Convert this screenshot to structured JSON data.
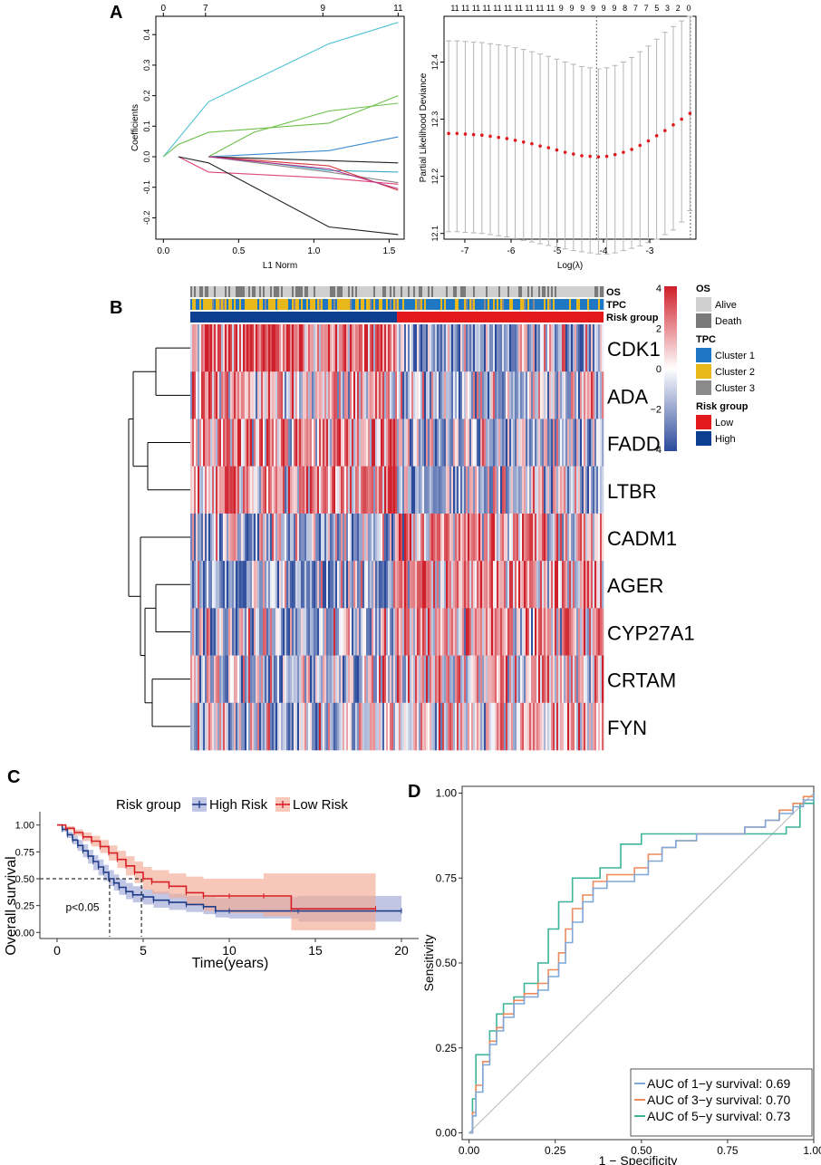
{
  "panels": {
    "A": "A",
    "B": "B",
    "C": "C",
    "D": "D"
  },
  "chart_data": [
    {
      "panel": "A-left",
      "type": "line",
      "title": "",
      "xlabel": "L1 Norm",
      "ylabel": "Coefficients",
      "xlim": [
        -0.05,
        1.6
      ],
      "ylim": [
        -0.27,
        0.46
      ],
      "x_ticks": [
        "0.0",
        "0.5",
        "1.0",
        "1.5"
      ],
      "x_tick_values": [
        0,
        0.5,
        1.0,
        1.5
      ],
      "y_ticks": [
        "-0.2",
        "-0.1",
        "0.0",
        "0.1",
        "0.2",
        "0.3",
        "0.4"
      ],
      "y_tick_values": [
        -0.2,
        -0.1,
        0.0,
        0.1,
        0.2,
        0.3,
        0.4
      ],
      "top_ticks": [
        "0",
        "7",
        "9",
        "11"
      ],
      "top_tick_values": [
        0,
        0.28,
        1.06,
        1.56
      ],
      "series": [
        {
          "name": "cyan",
          "color": "#4fc3d4",
          "x": [
            0,
            0.1,
            0.3,
            1.1,
            1.56
          ],
          "y": [
            0,
            0.06,
            0.18,
            0.37,
            0.44
          ]
        },
        {
          "name": "green1",
          "color": "#6cc04a",
          "x": [
            0,
            0.1,
            0.3,
            1.1,
            1.56
          ],
          "y": [
            0,
            0.04,
            0.08,
            0.11,
            0.2
          ]
        },
        {
          "name": "green2",
          "color": "#6cc04a",
          "x": [
            0.3,
            0.6,
            1.1,
            1.56
          ],
          "y": [
            0,
            0.08,
            0.15,
            0.175
          ]
        },
        {
          "name": "blue",
          "color": "#3c8ad1",
          "x": [
            0.3,
            1.1,
            1.56
          ],
          "y": [
            0,
            0.02,
            0.065
          ]
        },
        {
          "name": "black1",
          "color": "#222222",
          "x": [
            0.3,
            1.56
          ],
          "y": [
            0,
            -0.02
          ]
        },
        {
          "name": "teal",
          "color": "#3aa9c9",
          "x": [
            0.3,
            0.7,
            1.1,
            1.56
          ],
          "y": [
            0,
            -0.02,
            -0.045,
            -0.05
          ]
        },
        {
          "name": "gray",
          "color": "#8a8a8a",
          "x": [
            0.3,
            1.1,
            1.56
          ],
          "y": [
            0,
            -0.05,
            -0.085
          ]
        },
        {
          "name": "pink",
          "color": "#e0457a",
          "x": [
            0.1,
            0.3,
            1.1,
            1.56
          ],
          "y": [
            0,
            -0.05,
            -0.07,
            -0.09
          ]
        },
        {
          "name": "red",
          "color": "#d93a3a",
          "x": [
            0.3,
            1.1,
            1.56
          ],
          "y": [
            0,
            -0.03,
            -0.11
          ]
        },
        {
          "name": "magenta",
          "color": "#b0308c",
          "x": [
            0.3,
            1.1,
            1.56
          ],
          "y": [
            0,
            -0.04,
            -0.105
          ]
        },
        {
          "name": "black2",
          "color": "#222222",
          "x": [
            0.1,
            0.3,
            1.1,
            1.56
          ],
          "y": [
            0,
            -0.02,
            -0.23,
            -0.255
          ]
        }
      ]
    },
    {
      "panel": "A-right",
      "type": "scatter",
      "title": "",
      "xlabel": "Log(λ)",
      "ylabel": "Partial Likelihood Deviance",
      "xlim": [
        -7.45,
        -2.0
      ],
      "ylim": [
        12.09,
        12.48
      ],
      "x_ticks": [
        "-7",
        "-6",
        "-5",
        "-4",
        "-3"
      ],
      "x_tick_values": [
        -7,
        -6,
        -5,
        -4,
        -3
      ],
      "y_ticks": [
        "12.1",
        "12.2",
        "12.3",
        "12.4"
      ],
      "y_tick_values": [
        12.1,
        12.2,
        12.3,
        12.4
      ],
      "top_ticks": [
        "11",
        "11",
        "11",
        "11",
        "11",
        "11",
        "11",
        "11",
        "11",
        "11",
        "9",
        "9",
        "9",
        "9",
        "9",
        "9",
        "8",
        "7",
        "7",
        "5",
        "3",
        "2",
        "0"
      ],
      "top_tick_values": [
        -7.3,
        -6.9,
        -6.5,
        -6.1,
        -5.7,
        -5.3,
        -4.9,
        -4.5,
        -4.1,
        -3.7,
        -4.2,
        -4.0,
        -3.8,
        -3.6,
        -3.4,
        -3.2,
        -3.0,
        -2.8,
        -2.6,
        -2.4,
        -2.3,
        -2.2,
        -2.1
      ],
      "vlines_x": [
        -4.15,
        -2.12
      ],
      "x": [
        -7.35,
        -7.17,
        -6.99,
        -6.81,
        -6.63,
        -6.45,
        -6.27,
        -6.09,
        -5.91,
        -5.73,
        -5.55,
        -5.37,
        -5.19,
        -5.01,
        -4.83,
        -4.65,
        -4.47,
        -4.29,
        -4.11,
        -3.93,
        -3.75,
        -3.57,
        -3.39,
        -3.21,
        -3.03,
        -2.85,
        -2.67,
        -2.49,
        -2.31,
        -2.13
      ],
      "mean": [
        12.275,
        12.275,
        12.274,
        12.273,
        12.272,
        12.27,
        12.268,
        12.266,
        12.263,
        12.26,
        12.257,
        12.253,
        12.25,
        12.246,
        12.242,
        12.239,
        12.236,
        12.235,
        12.234,
        12.235,
        12.238,
        12.242,
        12.247,
        12.254,
        12.262,
        12.271,
        12.28,
        12.29,
        12.3,
        12.31
      ],
      "upper": [
        12.437,
        12.437,
        12.436,
        12.435,
        12.434,
        12.432,
        12.43,
        12.428,
        12.425,
        12.422,
        12.418,
        12.414,
        12.41,
        12.405,
        12.4,
        12.396,
        12.392,
        12.39,
        12.388,
        12.39,
        12.394,
        12.4,
        12.408,
        12.418,
        12.428,
        12.44,
        12.452,
        12.462,
        12.472,
        12.48
      ],
      "lower": [
        12.103,
        12.103,
        12.102,
        12.101,
        12.1,
        12.098,
        12.096,
        12.094,
        12.091,
        12.088,
        12.085,
        12.082,
        12.079,
        12.076,
        12.073,
        12.07,
        12.068,
        12.066,
        12.064,
        12.064,
        12.066,
        12.07,
        12.074,
        12.078,
        12.084,
        12.09,
        12.098,
        12.106,
        12.12,
        12.14
      ]
    },
    {
      "panel": "B",
      "type": "heatmap",
      "genes": [
        "CDK1",
        "ADA",
        "FADD",
        "LTBR",
        "CADM1",
        "AGER",
        "CYP27A1",
        "CRTAM",
        "FYN"
      ],
      "annotation_rows": [
        "OS",
        "TPC",
        "Risk group"
      ],
      "colorbar_ticks": [
        "4",
        "2",
        "0",
        "−2",
        "−4"
      ],
      "colorbar_tick_values": [
        4,
        2,
        0,
        -2,
        -4
      ],
      "color_low": "#2b4a9b",
      "color_mid": "#ffffff",
      "color_high": "#cf1f2a",
      "legends": [
        {
          "title": "OS",
          "items": [
            {
              "label": "Alive",
              "color": "#cfcfcf"
            },
            {
              "label": "Death",
              "color": "#7a7a7a"
            }
          ]
        },
        {
          "title": "TPC",
          "items": [
            {
              "label": "Cluster 1",
              "color": "#1f77c4"
            },
            {
              "label": "Cluster 2",
              "color": "#e8b71a"
            },
            {
              "label": "Cluster 3",
              "color": "#8a8a8a"
            }
          ]
        },
        {
          "title": "Risk group",
          "items": [
            {
              "label": "Low",
              "color": "#e31a1c"
            },
            {
              "label": "High",
              "color": "#0c3f8f"
            }
          ]
        }
      ],
      "high_risk_fraction": 0.5,
      "gene_mean_in_high_risk": [
        2.2,
        0.8,
        1.6,
        1.2,
        -1.2,
        -1.4,
        -1.0,
        -0.8,
        -0.6
      ],
      "gene_mean_in_low_risk": [
        -1.4,
        -0.9,
        -1.0,
        -0.9,
        1.0,
        1.4,
        1.2,
        0.8,
        0.6
      ]
    },
    {
      "panel": "C",
      "type": "line",
      "title": "",
      "legend_title": "Risk group",
      "xlabel": "Time(years)",
      "ylabel": "Overall survival",
      "xlim": [
        -1,
        21
      ],
      "ylim": [
        -0.04,
        1.04
      ],
      "x_ticks": [
        "0",
        "5",
        "10",
        "15",
        "20"
      ],
      "x_tick_values": [
        0,
        5,
        10,
        15,
        20
      ],
      "y_ticks": [
        "0.00",
        "0.25",
        "0.50",
        "0.75",
        "1.00"
      ],
      "y_tick_values": [
        0,
        0.25,
        0.5,
        0.75,
        1.0
      ],
      "annotation": "p<0.05",
      "median_lines": {
        "y": 0.5,
        "x": [
          3.05,
          4.9
        ]
      },
      "series": [
        {
          "name": "High Risk",
          "color": "#1f3c88",
          "band_color": "#9fa8d6",
          "x": [
            0,
            0.3,
            0.6,
            0.9,
            1.2,
            1.5,
            1.8,
            2.1,
            2.4,
            2.7,
            3.0,
            3.3,
            3.6,
            4.0,
            4.4,
            5.0,
            5.6,
            6.5,
            7.5,
            8.5,
            9.2,
            10.0,
            14.0,
            20.0
          ],
          "y": [
            1.0,
            0.96,
            0.91,
            0.86,
            0.81,
            0.76,
            0.71,
            0.66,
            0.61,
            0.56,
            0.5,
            0.46,
            0.42,
            0.38,
            0.35,
            0.33,
            0.3,
            0.28,
            0.26,
            0.24,
            0.2,
            0.2,
            0.2,
            0.2
          ],
          "lower": [
            1.0,
            0.94,
            0.88,
            0.82,
            0.76,
            0.7,
            0.64,
            0.58,
            0.53,
            0.48,
            0.43,
            0.39,
            0.35,
            0.31,
            0.28,
            0.26,
            0.23,
            0.21,
            0.19,
            0.17,
            0.14,
            0.13,
            0.1,
            0.08
          ],
          "upper": [
            1.0,
            0.98,
            0.94,
            0.9,
            0.86,
            0.82,
            0.77,
            0.72,
            0.68,
            0.63,
            0.58,
            0.54,
            0.5,
            0.46,
            0.43,
            0.4,
            0.38,
            0.36,
            0.34,
            0.33,
            0.32,
            0.33,
            0.34,
            0.35
          ]
        },
        {
          "name": "Low Risk",
          "color": "#d71f26",
          "band_color": "#f2ab93",
          "x": [
            0,
            0.5,
            1.0,
            1.5,
            2.0,
            2.5,
            3.0,
            3.5,
            4.0,
            4.5,
            5.0,
            5.5,
            6.5,
            7.5,
            8.5,
            10.0,
            12.0,
            13.6,
            18.5
          ],
          "y": [
            1.0,
            0.97,
            0.93,
            0.89,
            0.85,
            0.8,
            0.74,
            0.68,
            0.62,
            0.56,
            0.5,
            0.47,
            0.43,
            0.37,
            0.34,
            0.34,
            0.34,
            0.22,
            0.22
          ],
          "lower": [
            1.0,
            0.95,
            0.9,
            0.85,
            0.8,
            0.74,
            0.67,
            0.6,
            0.53,
            0.46,
            0.4,
            0.36,
            0.32,
            0.25,
            0.2,
            0.18,
            0.15,
            0.02,
            0.02
          ],
          "upper": [
            1.0,
            0.99,
            0.96,
            0.93,
            0.9,
            0.86,
            0.81,
            0.76,
            0.71,
            0.66,
            0.61,
            0.58,
            0.55,
            0.52,
            0.5,
            0.5,
            0.55,
            0.55,
            0.55
          ]
        }
      ]
    },
    {
      "panel": "D",
      "type": "line",
      "title": "",
      "xlabel": "1 − Specificity",
      "ylabel": "Sensitivity",
      "xlim": [
        -0.02,
        1.0
      ],
      "ylim": [
        -0.02,
        1.02
      ],
      "x_ticks": [
        "0.00",
        "0.25",
        "0.50",
        "0.75",
        "1.00"
      ],
      "x_tick_values": [
        0,
        0.25,
        0.5,
        0.75,
        1.0
      ],
      "y_ticks": [
        "0.00",
        "0.25",
        "0.50",
        "0.75",
        "1.00"
      ],
      "y_tick_values": [
        0,
        0.25,
        0.5,
        0.75,
        1.0
      ],
      "series": [
        {
          "name": "AUC of 1−y survival: 0.69",
          "color": "#7fa7d9",
          "x": [
            0,
            0.01,
            0.02,
            0.04,
            0.06,
            0.08,
            0.1,
            0.13,
            0.16,
            0.2,
            0.23,
            0.26,
            0.28,
            0.3,
            0.33,
            0.36,
            0.4,
            0.44,
            0.48,
            0.52,
            0.56,
            0.6,
            0.66,
            0.72,
            0.8,
            0.86,
            0.9,
            0.94,
            0.97,
            1.0
          ],
          "y": [
            0,
            0.05,
            0.12,
            0.2,
            0.26,
            0.3,
            0.34,
            0.38,
            0.4,
            0.42,
            0.46,
            0.5,
            0.56,
            0.62,
            0.68,
            0.72,
            0.74,
            0.74,
            0.76,
            0.8,
            0.84,
            0.86,
            0.88,
            0.88,
            0.9,
            0.92,
            0.94,
            0.96,
            0.98,
            1.0
          ]
        },
        {
          "name": "AUC of 3−y survival: 0.70",
          "color": "#ee8a5b",
          "x": [
            0,
            0.01,
            0.02,
            0.04,
            0.06,
            0.08,
            0.1,
            0.13,
            0.16,
            0.2,
            0.23,
            0.26,
            0.28,
            0.3,
            0.33,
            0.36,
            0.4,
            0.44,
            0.48,
            0.52,
            0.56,
            0.6,
            0.66,
            0.72,
            0.8,
            0.86,
            0.9,
            0.94,
            0.97,
            1.0
          ],
          "y": [
            0,
            0.06,
            0.14,
            0.21,
            0.27,
            0.31,
            0.35,
            0.39,
            0.41,
            0.44,
            0.48,
            0.53,
            0.6,
            0.66,
            0.7,
            0.74,
            0.76,
            0.76,
            0.78,
            0.82,
            0.84,
            0.86,
            0.88,
            0.88,
            0.9,
            0.92,
            0.95,
            0.97,
            0.99,
            1.0
          ]
        },
        {
          "name": "AUC of 5−y survival: 0.73",
          "color": "#3bb497",
          "x": [
            0,
            0.01,
            0.02,
            0.04,
            0.06,
            0.08,
            0.1,
            0.13,
            0.16,
            0.2,
            0.23,
            0.26,
            0.3,
            0.34,
            0.38,
            0.44,
            0.5,
            0.56,
            0.62,
            0.7,
            0.8,
            0.88,
            0.92,
            0.96,
            1.0
          ],
          "y": [
            0,
            0.1,
            0.23,
            0.23,
            0.3,
            0.35,
            0.38,
            0.4,
            0.44,
            0.5,
            0.6,
            0.68,
            0.75,
            0.75,
            0.78,
            0.85,
            0.88,
            0.88,
            0.88,
            0.88,
            0.88,
            0.88,
            0.9,
            0.97,
            1.0
          ]
        },
        {
          "name": "reference",
          "color": "#b8b8b8",
          "x": [
            0,
            1
          ],
          "y": [
            0,
            1
          ]
        }
      ]
    }
  ]
}
